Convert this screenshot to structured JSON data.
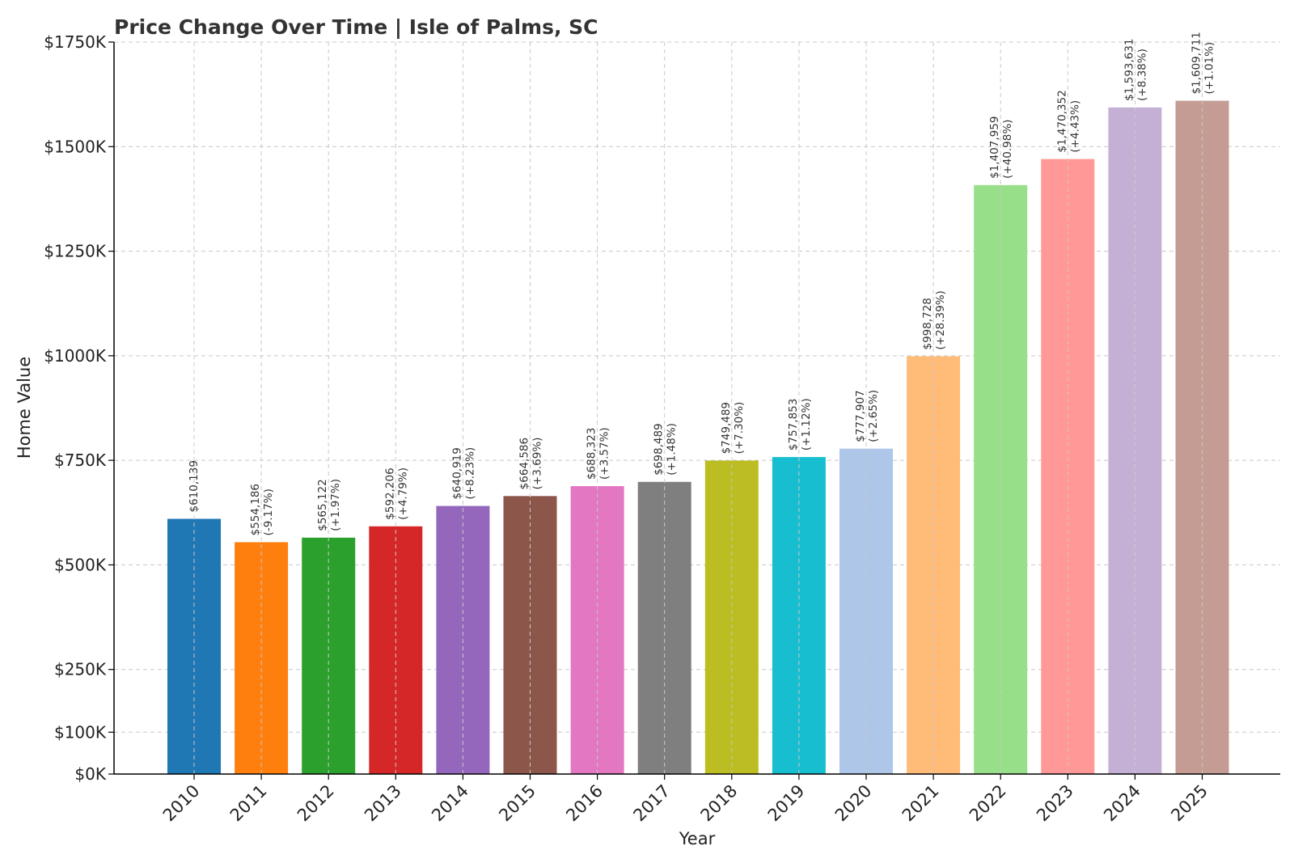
{
  "chart_data": {
    "type": "bar",
    "title": "Price Change Over Time | Isle of Palms, SC",
    "xlabel": "Year",
    "ylabel": "Home Value",
    "ylim": [
      0,
      1750000
    ],
    "yticks": [
      0,
      100000,
      250000,
      500000,
      750000,
      1000000,
      1250000,
      1500000,
      1750000
    ],
    "ytick_labels": [
      "$0K",
      "$100K",
      "$250K",
      "$500K",
      "$750K",
      "$1000K",
      "$1250K",
      "$1500K",
      "$1750K"
    ],
    "grid": true,
    "legend": "none",
    "categories": [
      "2010",
      "2011",
      "2012",
      "2013",
      "2014",
      "2015",
      "2016",
      "2017",
      "2018",
      "2019",
      "2020",
      "2021",
      "2022",
      "2023",
      "2024",
      "2025"
    ],
    "values": [
      610139,
      554186,
      565122,
      592206,
      640919,
      664586,
      688323,
      698489,
      749489,
      757853,
      777907,
      998728,
      1407959,
      1470352,
      1593631,
      1609711
    ],
    "value_labels": [
      "$610,139",
      "$554,186",
      "$565,122",
      "$592,206",
      "$640,919",
      "$664,586",
      "$688,323",
      "$698,489",
      "$749,489",
      "$757,853",
      "$777,907",
      "$998,728",
      "$1,407,959",
      "$1,470,352",
      "$1,593,631",
      "$1,609,711"
    ],
    "change_labels": [
      "",
      "(-9.17%)",
      "(+1.97%)",
      "(+4.79%)",
      "(+8.23%)",
      "(+3.69%)",
      "(+3.57%)",
      "(+1.48%)",
      "(+7.30%)",
      "(+1.12%)",
      "(+2.65%)",
      "(+28.39%)",
      "(+40.98%)",
      "(+4.43%)",
      "(+8.38%)",
      "(+1.01%)"
    ],
    "colors": [
      "#1f77b4",
      "#ff7f0e",
      "#2ca02c",
      "#d62728",
      "#9467bd",
      "#8c564b",
      "#e377c2",
      "#7f7f7f",
      "#bcbd22",
      "#17becf",
      "#aec7e8",
      "#ffbb78",
      "#98df8a",
      "#ff9896",
      "#c5b0d5",
      "#c49c94"
    ]
  }
}
